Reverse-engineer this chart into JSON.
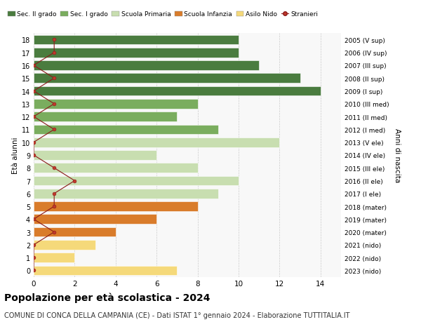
{
  "ages": [
    18,
    17,
    16,
    15,
    14,
    13,
    12,
    11,
    10,
    9,
    8,
    7,
    6,
    5,
    4,
    3,
    2,
    1,
    0
  ],
  "years": [
    "2005 (V sup)",
    "2006 (IV sup)",
    "2007 (III sup)",
    "2008 (II sup)",
    "2009 (I sup)",
    "2010 (III med)",
    "2011 (II med)",
    "2012 (I med)",
    "2013 (V ele)",
    "2014 (IV ele)",
    "2015 (III ele)",
    "2016 (II ele)",
    "2017 (I ele)",
    "2018 (mater)",
    "2019 (mater)",
    "2020 (mater)",
    "2021 (nido)",
    "2022 (nido)",
    "2023 (nido)"
  ],
  "values": [
    10,
    10,
    11,
    13,
    14,
    8,
    7,
    9,
    12,
    6,
    8,
    10,
    9,
    8,
    6,
    4,
    3,
    2,
    7
  ],
  "bar_colors": [
    "#4a7c3f",
    "#4a7c3f",
    "#4a7c3f",
    "#4a7c3f",
    "#4a7c3f",
    "#7aad5e",
    "#7aad5e",
    "#7aad5e",
    "#c8deb0",
    "#c8deb0",
    "#c8deb0",
    "#c8deb0",
    "#c8deb0",
    "#d97c2b",
    "#d97c2b",
    "#d97c2b",
    "#f5d97a",
    "#f5d97a",
    "#f5d97a"
  ],
  "stranieri_x": [
    1,
    1,
    0,
    1,
    0,
    1,
    0,
    1,
    0,
    0,
    1,
    2,
    1,
    1,
    0,
    1,
    0,
    0,
    0
  ],
  "legend_labels": [
    "Sec. II grado",
    "Sec. I grado",
    "Scuola Primaria",
    "Scuola Infanzia",
    "Asilo Nido",
    "Stranieri"
  ],
  "legend_colors": [
    "#4a7c3f",
    "#7aad5e",
    "#c8deb0",
    "#d97c2b",
    "#f5d97a",
    "#a32020"
  ],
  "title": "Popolazione per età scolastica - 2024",
  "subtitle": "COMUNE DI CONCA DELLA CAMPANIA (CE) - Dati ISTAT 1° gennaio 2024 - Elaborazione TUTTITALIA.IT",
  "ylabel": "Età alunni",
  "right_ylabel": "Anni di nascita",
  "title_fontsize": 10,
  "subtitle_fontsize": 7,
  "grid_color": "#cccccc",
  "xlim": [
    0,
    15
  ],
  "bar_height": 0.75,
  "facecolor": "#f8f8f8"
}
